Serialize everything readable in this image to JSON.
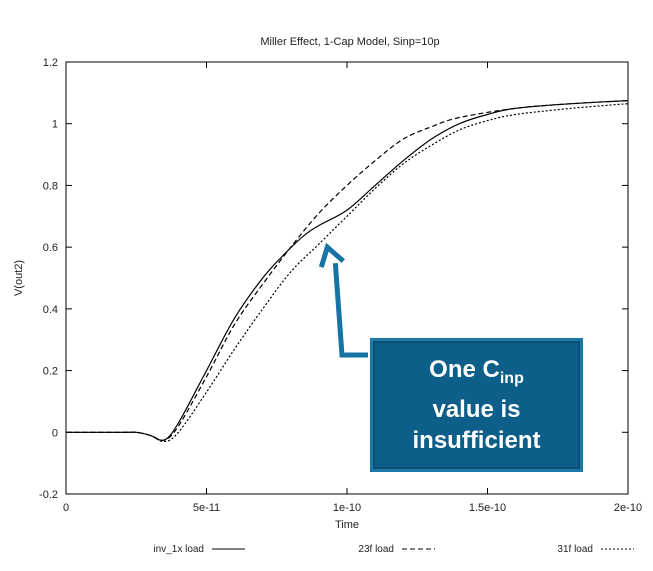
{
  "chart_data": {
    "type": "line",
    "title": "Miller Effect, 1-Cap Model, Sinp=10p",
    "xlabel": "Time",
    "ylabel": "V(out2)",
    "xlim": [
      0,
      2e-10
    ],
    "ylim": [
      -0.2,
      1.2
    ],
    "x_ticks": [
      0,
      5e-11,
      1e-10,
      1.5e-10,
      2e-10
    ],
    "x_tick_labels": [
      "0",
      "5e-11",
      "1e-10",
      "1.5e-10",
      "2e-10"
    ],
    "y_ticks": [
      -0.2,
      0,
      0.2,
      0.4,
      0.6,
      0.8,
      1,
      1.2
    ],
    "y_tick_labels": [
      "-0.2",
      "0",
      "0.2",
      "0.4",
      "0.6",
      "0.8",
      "1",
      "1.2"
    ],
    "grid": false,
    "legend_position": "bottom",
    "series": [
      {
        "name": "inv_1x load",
        "style": "solid",
        "x": [
          0,
          2e-11,
          2.5e-11,
          3e-11,
          3.5e-11,
          4e-11,
          5e-11,
          6e-11,
          7e-11,
          7.8e-11,
          8.5e-11,
          9e-11,
          1e-10,
          1.1e-10,
          1.2e-10,
          1.3e-10,
          1.4e-10,
          1.5e-10,
          1.6e-10,
          1.8e-10,
          2e-10
        ],
        "y": [
          0,
          0,
          0,
          -0.01,
          -0.025,
          0.03,
          0.2,
          0.37,
          0.5,
          0.58,
          0.64,
          0.67,
          0.72,
          0.8,
          0.88,
          0.95,
          1.0,
          1.03,
          1.05,
          1.065,
          1.075
        ]
      },
      {
        "name": "23f load",
        "style": "dashed",
        "x": [
          0,
          2e-11,
          2.5e-11,
          3e-11,
          3.5e-11,
          4e-11,
          5e-11,
          6e-11,
          7e-11,
          8e-11,
          9e-11,
          1e-10,
          1.1e-10,
          1.2e-10,
          1.3e-10,
          1.4e-10,
          1.6e-10,
          1.8e-10,
          2e-10
        ],
        "y": [
          0,
          0,
          0,
          -0.01,
          -0.025,
          0.02,
          0.18,
          0.35,
          0.48,
          0.6,
          0.71,
          0.8,
          0.88,
          0.95,
          0.99,
          1.02,
          1.05,
          1.065,
          1.075
        ]
      },
      {
        "name": "31f load",
        "style": "dotted",
        "x": [
          0,
          2e-11,
          2.5e-11,
          3e-11,
          3.5e-11,
          4e-11,
          5e-11,
          6e-11,
          7e-11,
          8e-11,
          9e-11,
          1e-10,
          1.1e-10,
          1.2e-10,
          1.3e-10,
          1.4e-10,
          1.5e-10,
          1.6e-10,
          1.8e-10,
          2e-10
        ],
        "y": [
          0,
          0,
          0,
          -0.01,
          -0.03,
          0.0,
          0.13,
          0.27,
          0.4,
          0.52,
          0.61,
          0.7,
          0.79,
          0.87,
          0.93,
          0.98,
          1.01,
          1.03,
          1.05,
          1.065
        ]
      }
    ],
    "annotation": {
      "line1_prefix": "One C",
      "line1_sub": "inp",
      "line2": "value is",
      "line3": "insufficient",
      "arrow_target": [
        9.3e-11,
        0.6
      ]
    }
  },
  "colors": {
    "callout_fill": "#0d5f8a",
    "callout_border": "#1c7aa8",
    "arrow": "#1673a3",
    "line": "#000000"
  }
}
